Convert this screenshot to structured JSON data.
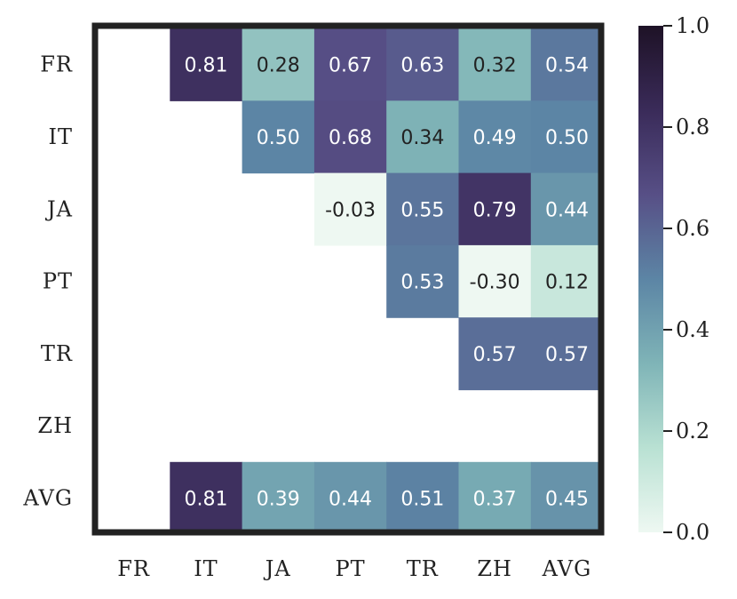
{
  "chart_data": {
    "type": "heatmap",
    "rows": [
      "FR",
      "IT",
      "JA",
      "PT",
      "TR",
      "ZH",
      "AVG"
    ],
    "columns": [
      "FR",
      "IT",
      "JA",
      "PT",
      "TR",
      "ZH",
      "AVG"
    ],
    "values": [
      [
        null,
        0.81,
        0.28,
        0.67,
        0.63,
        0.32,
        0.54
      ],
      [
        null,
        null,
        0.5,
        0.68,
        0.34,
        0.49,
        0.5
      ],
      [
        null,
        null,
        null,
        -0.03,
        0.55,
        0.79,
        0.44
      ],
      [
        null,
        null,
        null,
        null,
        0.53,
        -0.3,
        0.12
      ],
      [
        null,
        null,
        null,
        null,
        null,
        0.57,
        0.57
      ],
      [
        null,
        null,
        null,
        null,
        null,
        null,
        null
      ],
      [
        null,
        0.81,
        0.39,
        0.44,
        0.51,
        0.37,
        0.45
      ]
    ],
    "value_labels": [
      [
        "",
        "0.81",
        "0.28",
        "0.67",
        "0.63",
        "0.32",
        "0.54"
      ],
      [
        "",
        "",
        "0.50",
        "0.68",
        "0.34",
        "0.49",
        "0.50"
      ],
      [
        "",
        "",
        "",
        "-0.03",
        "0.55",
        "0.79",
        "0.44"
      ],
      [
        "",
        "",
        "",
        "",
        "0.53",
        "-0.30",
        "0.12"
      ],
      [
        "",
        "",
        "",
        "",
        "",
        "0.57",
        "0.57"
      ],
      [
        "",
        "",
        "",
        "",
        "",
        "",
        ""
      ],
      [
        "",
        "0.81",
        "0.39",
        "0.44",
        "0.51",
        "0.37",
        "0.45"
      ]
    ],
    "colorbar": {
      "range": [
        0.0,
        1.0
      ],
      "ticks": [
        "0.0",
        "0.2",
        "0.4",
        "0.6",
        "0.8",
        "1.0"
      ],
      "colormap": [
        "#eef8f2",
        "#b9e1d3",
        "#7fb4b7",
        "#5c85a5",
        "#574f86",
        "#3a2b59",
        "#1e1226"
      ]
    },
    "grid": false,
    "legend": "colorbar-right"
  }
}
